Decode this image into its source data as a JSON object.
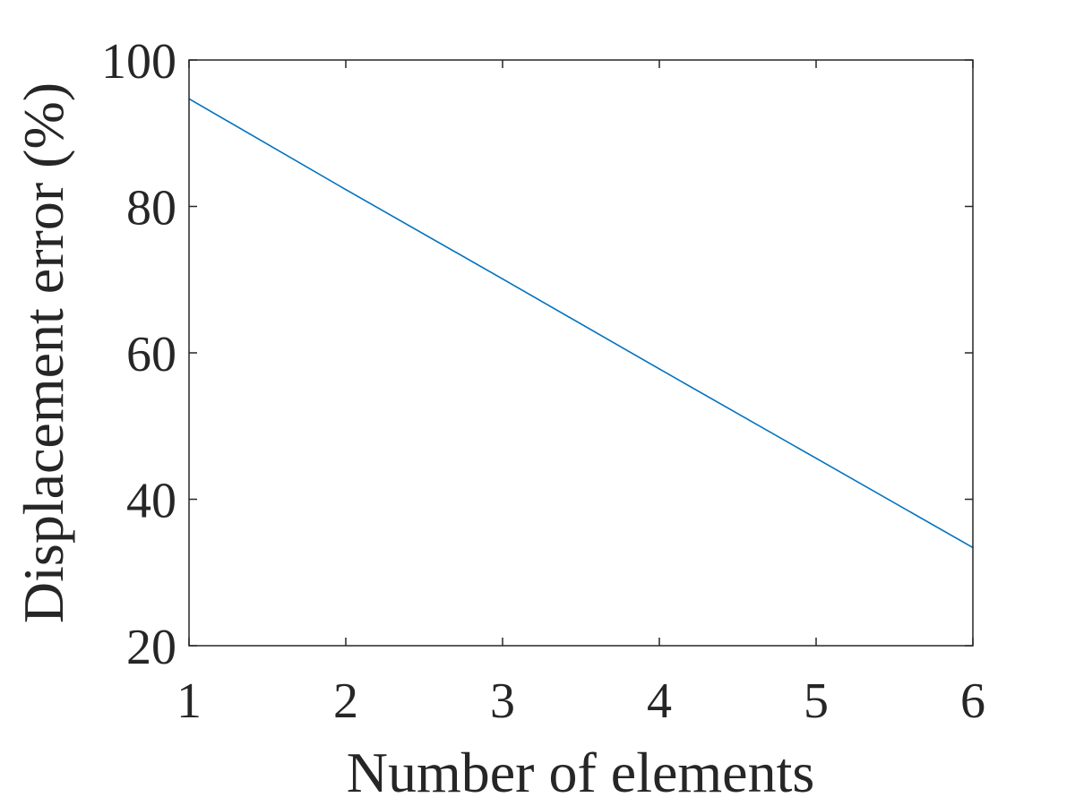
{
  "chart_data": {
    "type": "line",
    "title": "",
    "xlabel": "Number of elements",
    "ylabel": "Displacement error (%)",
    "xlim": [
      1,
      6
    ],
    "ylim": [
      20,
      100
    ],
    "x_ticks": [
      1,
      2,
      3,
      4,
      5,
      6
    ],
    "y_ticks": [
      20,
      40,
      60,
      80,
      100
    ],
    "grid": false,
    "box": true,
    "series": [
      {
        "color": "#0072BD",
        "x": [
          1,
          2,
          3,
          4,
          5,
          6
        ],
        "y": [
          94.7,
          82.3,
          70.1,
          57.8,
          45.6,
          33.4
        ]
      }
    ]
  }
}
